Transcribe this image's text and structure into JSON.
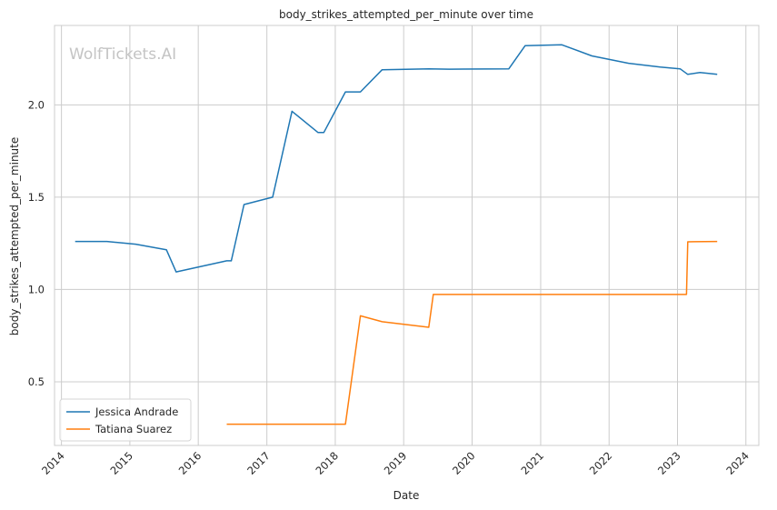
{
  "chart_data": {
    "type": "line",
    "title": "body_strikes_attempted_per_minute over time",
    "xlabel": "Date",
    "ylabel": "body_strikes_attempted_per_minute",
    "watermark": "WolfTickets.AI",
    "x_ticks": [
      "2014",
      "2015",
      "2016",
      "2017",
      "2018",
      "2019",
      "2020",
      "2021",
      "2022",
      "2023",
      "2024"
    ],
    "y_ticks": [
      "0.5",
      "1.0",
      "1.5",
      "2.0"
    ],
    "xlim": [
      "2013-11-25",
      "2024-03-10"
    ],
    "ylim": [
      0.155,
      2.43
    ],
    "grid": true,
    "legend_position": "lower-left",
    "series": [
      {
        "name": "Jessica Andrade",
        "color": "#1f77b4",
        "x": [
          "2014-03-15",
          "2014-09-01",
          "2015-02-01",
          "2015-07-15",
          "2015-09-05",
          "2016-06-01",
          "2016-06-25",
          "2016-09-01",
          "2017-02-01",
          "2017-05-15",
          "2017-10-01",
          "2017-11-01",
          "2018-02-24",
          "2018-05-15",
          "2018-09-08",
          "2019-05-15",
          "2019-09-01",
          "2020-07-15",
          "2020-10-10",
          "2021-04-24",
          "2021-10-01",
          "2022-04-15",
          "2022-10-01",
          "2023-01-15",
          "2023-02-25",
          "2023-05-01",
          "2023-08-01"
        ],
        "y": [
          1.26,
          1.26,
          1.245,
          1.215,
          1.095,
          1.155,
          1.155,
          1.46,
          1.5,
          1.965,
          1.85,
          1.85,
          2.07,
          2.07,
          2.19,
          2.195,
          2.193,
          2.195,
          2.32,
          2.325,
          2.265,
          2.225,
          2.205,
          2.195,
          2.165,
          2.175,
          2.165
        ]
      },
      {
        "name": "Tatiana Suarez",
        "color": "#ff7f0e",
        "x": [
          "2016-06-01",
          "2016-09-01",
          "2017-06-01",
          "2018-02-24",
          "2018-05-15",
          "2018-09-08",
          "2019-05-15",
          "2019-06-08",
          "2020-01-01",
          "2021-01-01",
          "2022-01-01",
          "2023-02-18",
          "2023-02-25",
          "2023-08-01"
        ],
        "y": [
          0.27,
          0.27,
          0.27,
          0.27,
          0.857,
          0.825,
          0.795,
          0.973,
          0.973,
          0.973,
          0.973,
          0.973,
          1.258,
          1.26
        ]
      }
    ]
  }
}
